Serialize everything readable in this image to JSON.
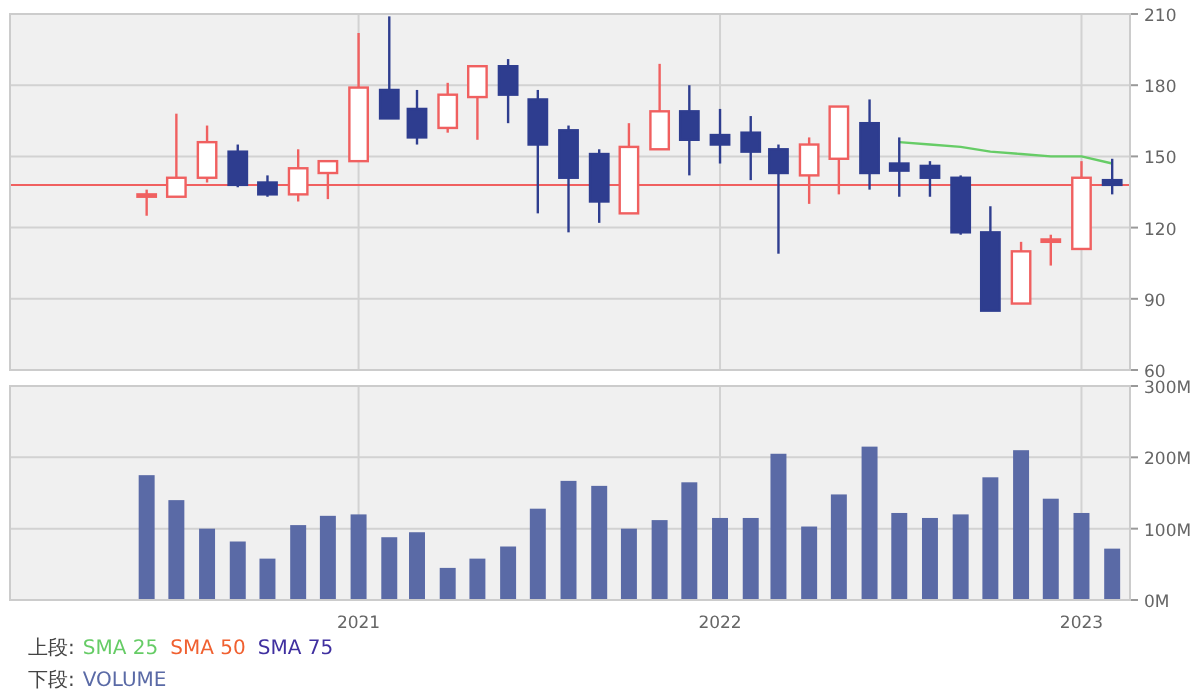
{
  "chart_data": [
    {
      "type": "candlestick",
      "x": [
        "2020-06",
        "2020-07",
        "2020-08",
        "2020-09",
        "2020-10",
        "2020-11",
        "2020-12",
        "2021-01",
        "2021-02",
        "2021-03",
        "2021-04",
        "2021-05",
        "2021-06",
        "2021-07",
        "2021-08",
        "2021-09",
        "2021-10",
        "2021-11",
        "2021-12",
        "2022-01",
        "2022-02",
        "2022-03",
        "2022-04",
        "2022-05",
        "2022-06",
        "2022-07",
        "2022-08",
        "2022-09",
        "2022-10",
        "2022-11",
        "2022-12",
        "2023-01",
        "2023-02"
      ],
      "ohlc": [
        [
          133,
          136,
          125,
          134
        ],
        [
          133,
          168,
          133,
          141
        ],
        [
          141,
          163,
          139,
          156
        ],
        [
          152,
          155,
          137,
          138
        ],
        [
          139,
          142,
          133,
          134
        ],
        [
          134,
          153,
          131,
          145
        ],
        [
          143,
          148,
          132,
          148
        ],
        [
          148,
          202,
          148,
          179
        ],
        [
          178,
          209,
          166,
          166
        ],
        [
          170,
          178,
          155,
          158
        ],
        [
          162,
          181,
          160,
          176
        ],
        [
          175,
          188,
          157,
          188
        ],
        [
          188,
          191,
          164,
          176
        ],
        [
          174,
          178,
          126,
          155
        ],
        [
          161,
          163,
          118,
          141
        ],
        [
          151,
          153,
          122,
          131
        ],
        [
          126,
          164,
          126,
          154
        ],
        [
          153,
          189,
          153,
          169
        ],
        [
          169,
          180,
          142,
          157
        ],
        [
          159,
          170,
          147,
          155
        ],
        [
          160,
          167,
          140,
          152
        ],
        [
          153,
          155,
          109,
          143
        ],
        [
          142,
          158,
          130,
          155
        ],
        [
          149,
          171,
          134,
          171
        ],
        [
          164,
          174,
          136,
          143
        ],
        [
          147,
          158,
          133,
          144
        ],
        [
          146,
          148,
          133,
          141
        ],
        [
          141,
          142,
          117,
          118
        ],
        [
          118,
          129,
          85,
          85
        ],
        [
          88,
          114,
          88,
          110
        ],
        [
          114,
          117,
          104,
          115
        ],
        [
          111,
          148,
          111,
          141
        ],
        [
          140,
          149,
          134,
          138
        ]
      ],
      "colors": [
        "#f06060",
        "#f06060",
        "#f06060",
        "#2e3d8f",
        "#2e3d8f",
        "#f06060",
        "#f06060",
        "#f06060",
        "#2e3d8f",
        "#2e3d8f",
        "#f06060",
        "#f06060",
        "#2e3d8f",
        "#2e3d8f",
        "#2e3d8f",
        "#2e3d8f",
        "#f06060",
        "#f06060",
        "#2e3d8f",
        "#2e3d8f",
        "#2e3d8f",
        "#2e3d8f",
        "#f06060",
        "#f06060",
        "#2e3d8f",
        "#2e3d8f",
        "#2e3d8f",
        "#2e3d8f",
        "#2e3d8f",
        "#f06060",
        "#f06060",
        "#f06060",
        "#2e3d8f"
      ],
      "series": [
        {
          "name": "SMA 25",
          "type": "line",
          "color": "#66cc66",
          "values": [
            null,
            null,
            null,
            null,
            null,
            null,
            null,
            null,
            null,
            null,
            null,
            null,
            null,
            null,
            null,
            null,
            null,
            null,
            null,
            null,
            null,
            null,
            null,
            null,
            null,
            156,
            155,
            154,
            152,
            151,
            150,
            150,
            147
          ]
        },
        {
          "name": "SMA 50",
          "type": "line",
          "color": "#f06030",
          "values": [
            null,
            null,
            null,
            null,
            null,
            null,
            null,
            null,
            null,
            null,
            null,
            null,
            null,
            null,
            null,
            null,
            null,
            null,
            null,
            null,
            null,
            null,
            null,
            null,
            null,
            null,
            null,
            null,
            null,
            null,
            null,
            null,
            null
          ]
        },
        {
          "name": "SMA 75",
          "type": "line",
          "color": "#4030a0",
          "values": [
            null,
            null,
            null,
            null,
            null,
            null,
            null,
            null,
            null,
            null,
            null,
            null,
            null,
            null,
            null,
            null,
            null,
            null,
            null,
            null,
            null,
            null,
            null,
            null,
            null,
            null,
            null,
            null,
            null,
            null,
            null,
            null,
            null
          ]
        }
      ],
      "xlim": [
        "2020-01-15",
        "2023-02-19"
      ],
      "xticks": [
        {
          "value": "2021-01",
          "label": null
        },
        {
          "value": "2022-01",
          "label": null
        },
        {
          "value": "2023-01",
          "label": null
        }
      ],
      "ylim": [
        60,
        210
      ],
      "yticks": [
        60,
        90,
        120,
        150,
        180,
        210
      ],
      "ref_lines": [
        {
          "axis": "y",
          "value": 138,
          "color": "#f06060"
        }
      ],
      "grid": true,
      "tick_labels": "y",
      "legend": "bottom left",
      "annotations": [
        "上段:"
      ]
    },
    {
      "type": "bar",
      "x": [
        "2020-06",
        "2020-07",
        "2020-08",
        "2020-09",
        "2020-10",
        "2020-11",
        "2020-12",
        "2021-01",
        "2021-02",
        "2021-03",
        "2021-04",
        "2021-05",
        "2021-06",
        "2021-07",
        "2021-08",
        "2021-09",
        "2021-10",
        "2021-11",
        "2021-12",
        "2022-01",
        "2022-02",
        "2022-03",
        "2022-04",
        "2022-05",
        "2022-06",
        "2022-07",
        "2022-08",
        "2022-09",
        "2022-10",
        "2022-11",
        "2022-12",
        "2023-01",
        "2023-02"
      ],
      "series": [
        {
          "name": "VOLUME",
          "color": "#5a6aa6",
          "values": [
            175,
            140,
            100,
            82,
            58,
            105,
            118,
            120,
            88,
            95,
            45,
            58,
            75,
            128,
            167,
            160,
            100,
            112,
            165,
            115,
            115,
            205,
            103,
            148,
            215,
            122,
            115,
            120,
            172,
            210,
            142,
            122,
            72
          ]
        }
      ],
      "xlim": [
        "2020-01-15",
        "2023-02-19"
      ],
      "xticks": [
        {
          "value": "2021-01",
          "label": "2021"
        },
        {
          "value": "2022-01",
          "label": "2022"
        },
        {
          "value": "2023-01",
          "label": "2023"
        }
      ],
      "ylim": [
        0,
        300
      ],
      "yticks": [
        {
          "value": 0,
          "label": "0M"
        },
        {
          "value": 100,
          "label": "100M"
        },
        {
          "value": 200,
          "label": "200M"
        },
        {
          "value": 300,
          "label": "300M"
        }
      ],
      "grid": true,
      "legend": "bottom left",
      "annotations": [
        "下段:"
      ]
    }
  ]
}
